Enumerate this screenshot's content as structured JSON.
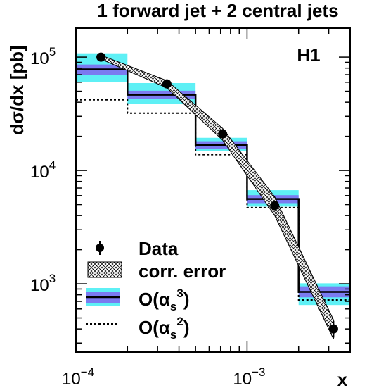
{
  "chart_data": {
    "type": "step-histogram",
    "title": "1 forward jet + 2 central jets",
    "label": "H1",
    "xlabel": "x",
    "ylabel": "dσ/dx [pb]",
    "xscale": "log",
    "yscale": "log",
    "xlim": [
      0.0001,
      0.004
    ],
    "ylim": [
      250,
      180000
    ],
    "x_ticks": [
      {
        "value": 0.0001,
        "base": "10",
        "exp": "−4"
      },
      {
        "value": 0.001,
        "base": "10",
        "exp": "−3"
      }
    ],
    "y_ticks": [
      {
        "value": 1000,
        "base": "10",
        "exp": "3"
      },
      {
        "value": 10000,
        "base": "10",
        "exp": "4"
      },
      {
        "value": 100000,
        "base": "10",
        "exp": "5"
      }
    ],
    "bin_edges": [
      0.0001,
      0.0002,
      0.0005,
      0.001,
      0.002,
      0.004
    ],
    "nlo_alpha_s3": {
      "central": [
        78000,
        46500,
        16800,
        5600,
        850
      ],
      "inner_band_lo": [
        70000,
        42500,
        15500,
        5150,
        760
      ],
      "inner_band_hi": [
        86000,
        50500,
        18100,
        6050,
        950
      ],
      "outer_band_lo": [
        60000,
        38500,
        14800,
        4800,
        650
      ],
      "outer_band_hi": [
        108000,
        59000,
        19400,
        6700,
        1010
      ]
    },
    "lo_alpha_s2": [
      42000,
      32000,
      13800,
      4700,
      720
    ],
    "data": {
      "x": [
        0.00014,
        0.00034,
        0.00072,
        0.00145,
        0.0032
      ],
      "y": [
        100000,
        58000,
        21000,
        4900,
        400
      ],
      "err_lo": [
        2000,
        1200,
        500,
        150,
        45
      ],
      "err_hi": [
        2000,
        1200,
        500,
        150,
        45
      ]
    },
    "corr_error_band": {
      "x": [
        0.00014,
        0.00034,
        0.00072,
        0.00145,
        0.0032
      ],
      "lo": [
        96000,
        53500,
        18500,
        4000,
        325
      ],
      "hi": [
        104000,
        62000,
        23500,
        5850,
        480
      ]
    },
    "legend": {
      "placement": "bottom-left",
      "items": [
        {
          "kind": "data",
          "label": "Data"
        },
        {
          "kind": "hatch",
          "label": "corr. error"
        },
        {
          "kind": "band",
          "label": "O(α",
          "sub": "s",
          "sup": "3",
          "tail": ")"
        },
        {
          "kind": "dashed",
          "label": "O(α",
          "sub": "s",
          "sup": "2",
          "tail": ")"
        }
      ]
    },
    "colors": {
      "inner_band": "#7b7bf0",
      "outer_band": "#5ef0f5",
      "line": "#000000"
    }
  }
}
